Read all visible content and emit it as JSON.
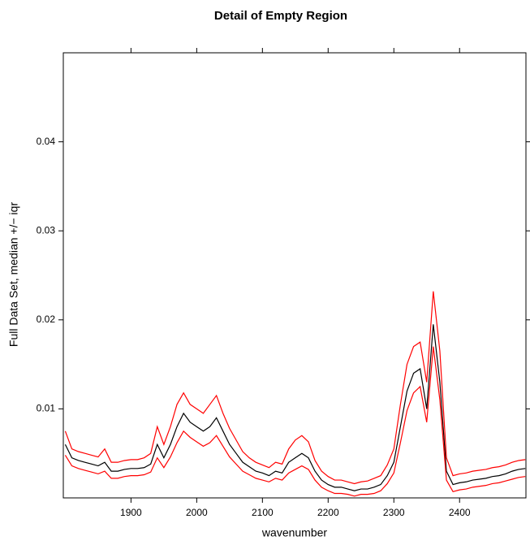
{
  "chart_data": {
    "type": "line",
    "title": "Detail of Empty Region",
    "xlabel": "wavenumber",
    "ylabel": "Full Data Set, median +/− iqr",
    "x": [
      1800,
      1810,
      1820,
      1830,
      1840,
      1850,
      1860,
      1870,
      1880,
      1890,
      1900,
      1910,
      1920,
      1930,
      1940,
      1950,
      1960,
      1970,
      1980,
      1990,
      2000,
      2010,
      2020,
      2030,
      2040,
      2050,
      2060,
      2070,
      2080,
      2090,
      2100,
      2110,
      2120,
      2130,
      2140,
      2150,
      2160,
      2170,
      2180,
      2190,
      2200,
      2210,
      2220,
      2230,
      2240,
      2250,
      2260,
      2270,
      2280,
      2290,
      2300,
      2310,
      2320,
      2330,
      2340,
      2350,
      2360,
      2370,
      2380,
      2390,
      2400,
      2410,
      2420,
      2430,
      2440,
      2450,
      2460,
      2470,
      2480,
      2490,
      2500
    ],
    "series": [
      {
        "color": "#ff0000",
        "values": [
          0.0075,
          0.0055,
          0.0052,
          0.005,
          0.0048,
          0.0046,
          0.0055,
          0.004,
          0.004,
          0.0042,
          0.0043,
          0.0043,
          0.0045,
          0.005,
          0.008,
          0.006,
          0.008,
          0.0105,
          0.0118,
          0.0105,
          0.01,
          0.0095,
          0.0105,
          0.0115,
          0.0095,
          0.0078,
          0.0065,
          0.0052,
          0.0045,
          0.004,
          0.0037,
          0.0034,
          0.004,
          0.0038,
          0.0055,
          0.0065,
          0.007,
          0.0063,
          0.0042,
          0.003,
          0.0024,
          0.002,
          0.002,
          0.0018,
          0.0016,
          0.0018,
          0.0019,
          0.0022,
          0.0025,
          0.0037,
          0.0055,
          0.0105,
          0.015,
          0.017,
          0.0175,
          0.013,
          0.0232,
          0.0165,
          0.0045,
          0.0025,
          0.0027,
          0.0028,
          0.003,
          0.0031,
          0.0032,
          0.0034,
          0.0035,
          0.0037,
          0.004,
          0.0042,
          0.0043
        ]
      },
      {
        "color": "#000000",
        "values": [
          0.006,
          0.0045,
          0.0042,
          0.004,
          0.0038,
          0.0036,
          0.004,
          0.003,
          0.003,
          0.0032,
          0.0033,
          0.0033,
          0.0034,
          0.0038,
          0.006,
          0.0045,
          0.006,
          0.008,
          0.0095,
          0.0085,
          0.008,
          0.0075,
          0.008,
          0.009,
          0.0075,
          0.006,
          0.005,
          0.004,
          0.0035,
          0.003,
          0.0028,
          0.0025,
          0.003,
          0.0028,
          0.004,
          0.0045,
          0.005,
          0.0045,
          0.003,
          0.002,
          0.0015,
          0.0012,
          0.0012,
          0.001,
          0.0008,
          0.001,
          0.001,
          0.0012,
          0.0015,
          0.0025,
          0.004,
          0.008,
          0.012,
          0.014,
          0.0145,
          0.01,
          0.0195,
          0.013,
          0.003,
          0.0015,
          0.0017,
          0.0018,
          0.002,
          0.0021,
          0.0022,
          0.0024,
          0.0025,
          0.0027,
          0.003,
          0.0032,
          0.0033
        ]
      },
      {
        "color": "#ff0000",
        "values": [
          0.0048,
          0.0036,
          0.0033,
          0.0031,
          0.0029,
          0.0027,
          0.003,
          0.0022,
          0.0022,
          0.0024,
          0.0025,
          0.0025,
          0.0026,
          0.0029,
          0.0045,
          0.0034,
          0.0046,
          0.0062,
          0.0075,
          0.0068,
          0.0063,
          0.0058,
          0.0062,
          0.007,
          0.0058,
          0.0046,
          0.0038,
          0.003,
          0.0026,
          0.0022,
          0.002,
          0.0018,
          0.0022,
          0.002,
          0.0028,
          0.0032,
          0.0036,
          0.0032,
          0.002,
          0.0012,
          0.0008,
          0.0005,
          0.0005,
          0.0004,
          0.0002,
          0.0004,
          0.0004,
          0.0005,
          0.0008,
          0.0016,
          0.0028,
          0.0062,
          0.0098,
          0.0118,
          0.0125,
          0.0085,
          0.017,
          0.011,
          0.002,
          0.0007,
          0.0009,
          0.001,
          0.0012,
          0.0013,
          0.0014,
          0.0016,
          0.0017,
          0.0019,
          0.0021,
          0.0023,
          0.0024
        ]
      }
    ],
    "xlim": [
      1797,
      2501
    ],
    "ylim": [
      0,
      0.05
    ],
    "xticks": [
      1900,
      2000,
      2100,
      2200,
      2300,
      2400
    ],
    "yticks": [
      0.01,
      0.02,
      0.03,
      0.04
    ]
  }
}
